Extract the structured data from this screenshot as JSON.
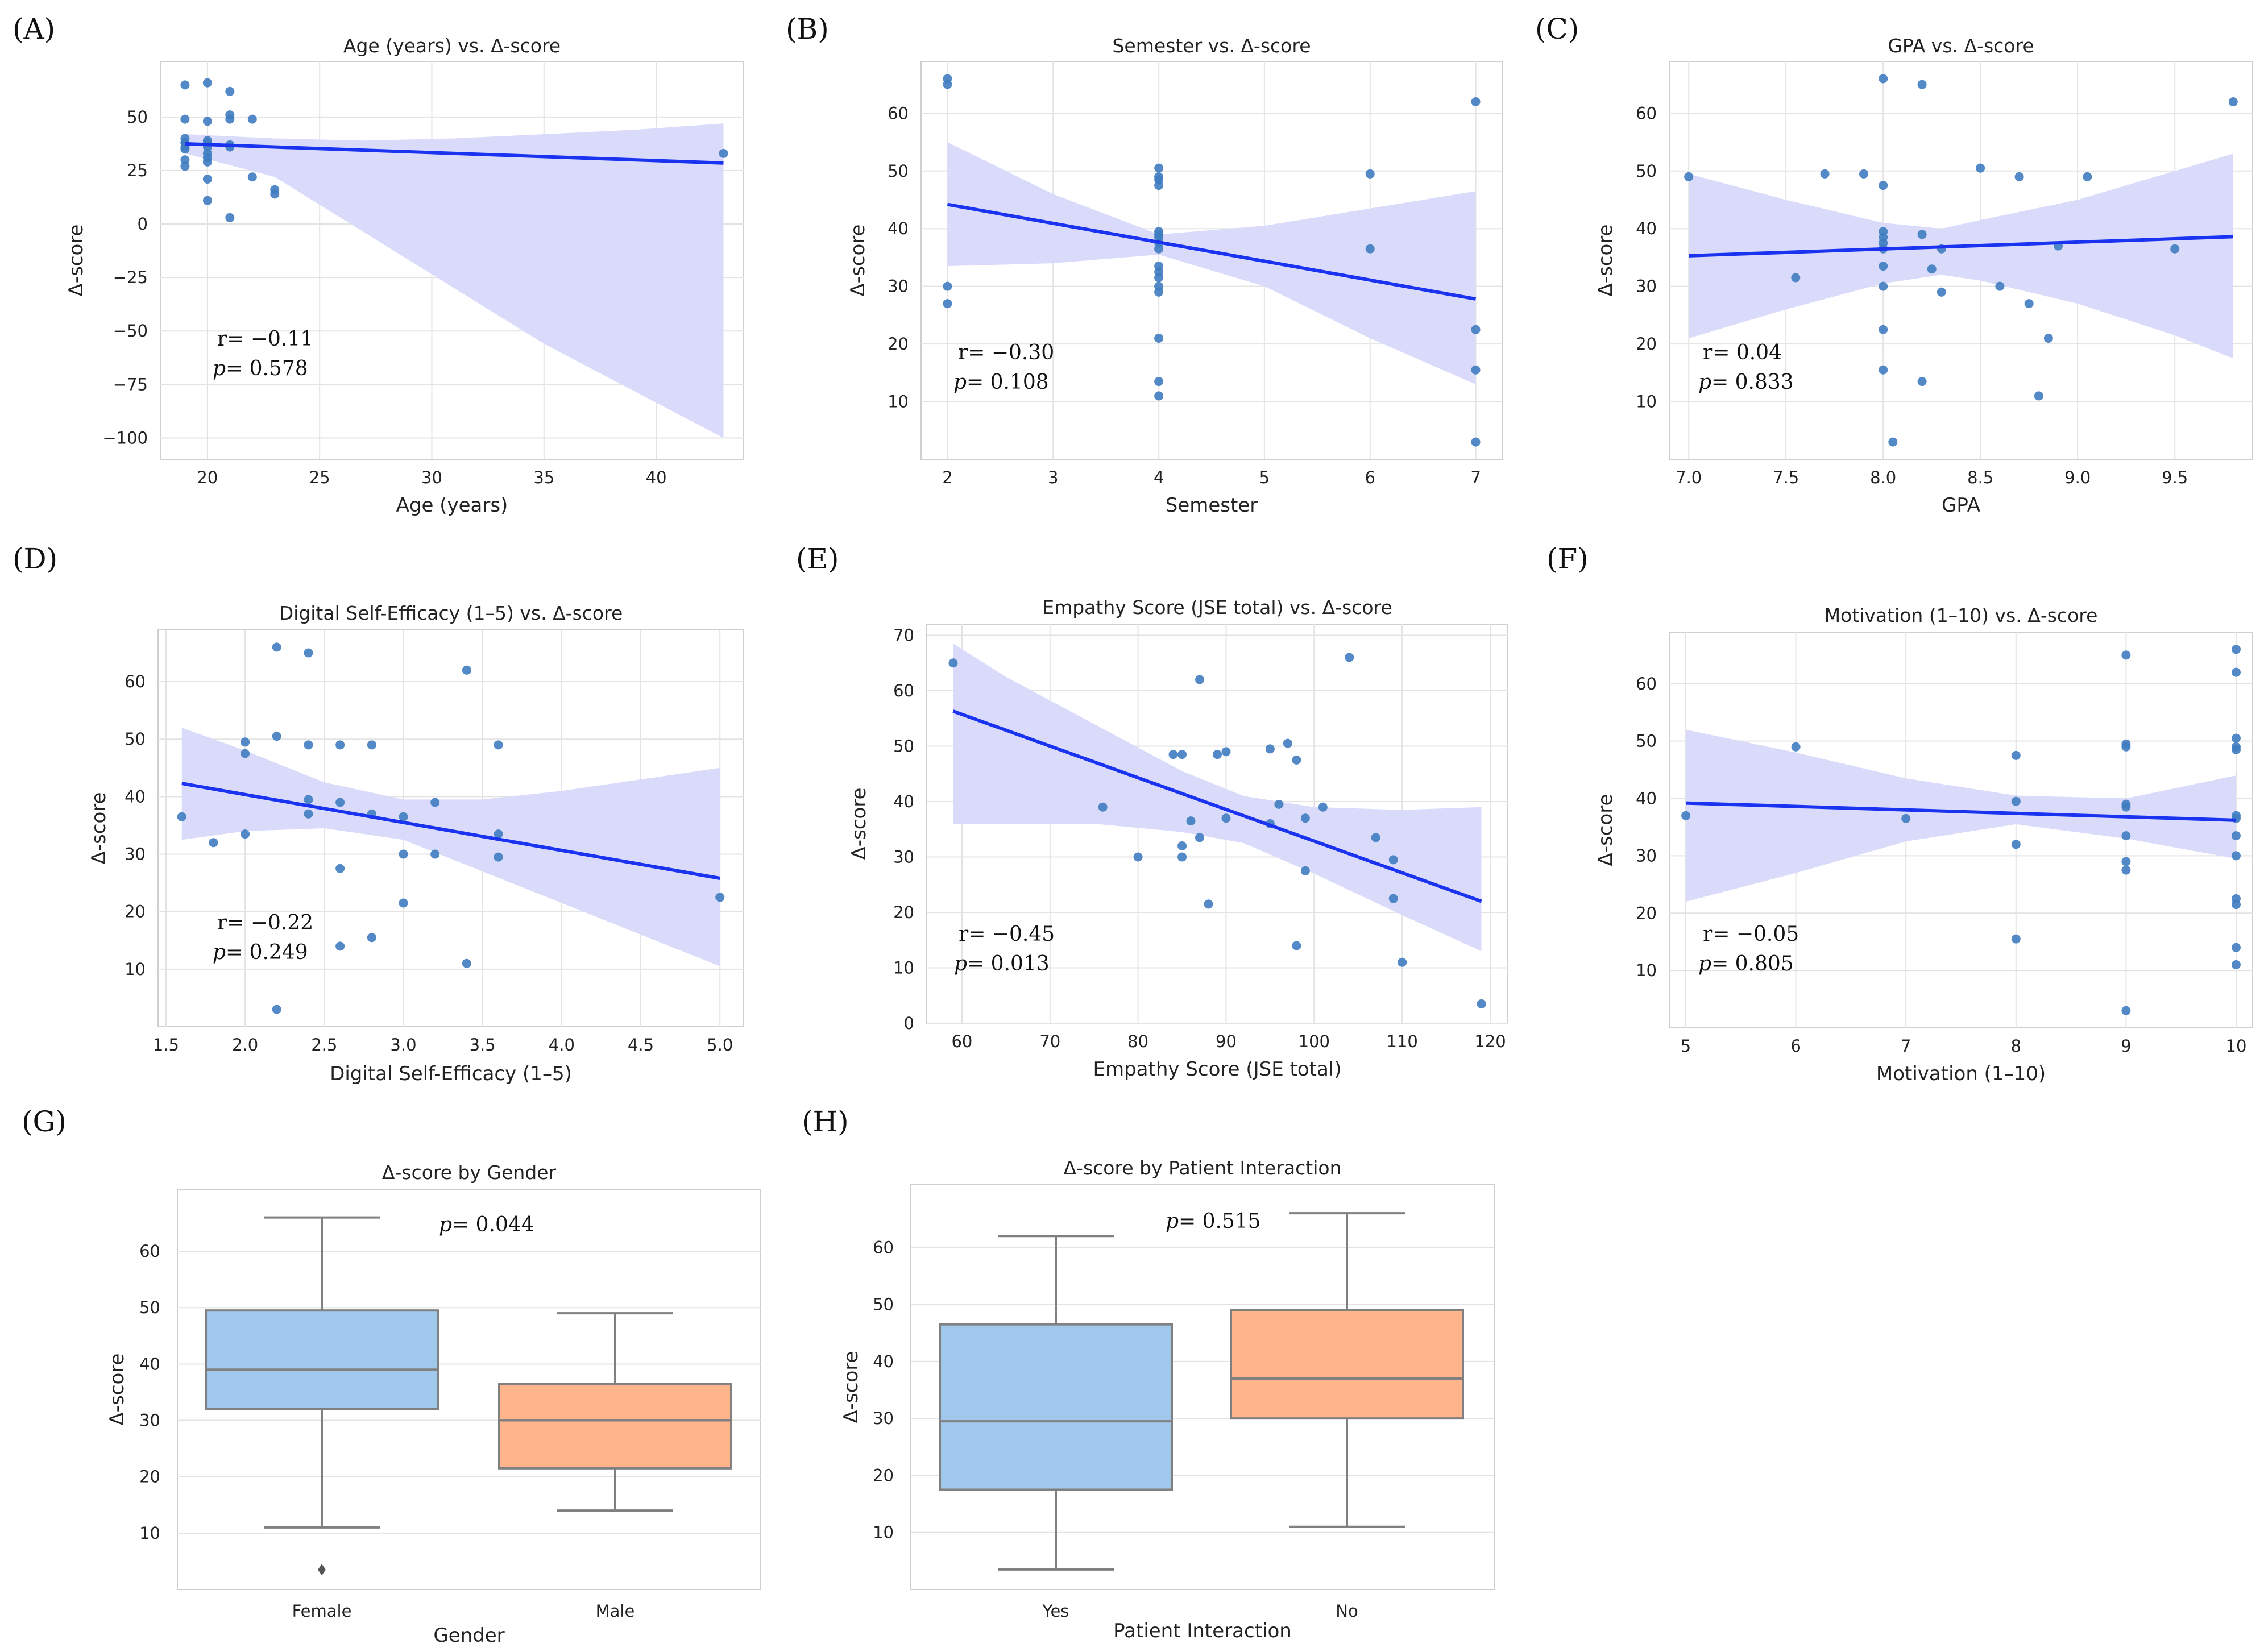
{
  "figure": {
    "panel_labels": [
      "(A)",
      "(B)",
      "(C)",
      "(D)",
      "(E)",
      "(F)",
      "(G)",
      "(H)"
    ]
  },
  "colors": {
    "points": "#3f7cc0",
    "regression_line": "#1a33f0",
    "ci_band": "#d8d9fb",
    "grid": "#e3e3e3",
    "box_female": "#a0c8ec",
    "box_male": "#ffb48c",
    "whisker": "#808080"
  },
  "chart_data": [
    {
      "id": "A",
      "type": "scatter",
      "title": "Age (years) vs. Δ-score",
      "xlabel": "Age (years)",
      "ylabel": "Δ-score",
      "xlim": [
        17.9,
        43.9
      ],
      "ylim": [
        -110,
        76
      ],
      "xticks": [
        20,
        25,
        30,
        35,
        40
      ],
      "yticks": [
        -100,
        -75,
        -50,
        -25,
        0,
        25,
        50
      ],
      "x": [
        19,
        19,
        19,
        19,
        19,
        19,
        19,
        19,
        19,
        20,
        20,
        20,
        20,
        20,
        20,
        20,
        20,
        20,
        20,
        21,
        21,
        21,
        21,
        21,
        21,
        22,
        22,
        23,
        23,
        43
      ],
      "y": [
        65,
        49,
        40,
        38,
        36,
        35,
        30,
        27,
        38,
        66,
        48,
        39,
        36,
        33,
        31,
        29,
        21,
        11,
        38,
        62,
        51,
        49,
        37,
        36,
        3,
        49,
        22,
        16,
        14,
        33
      ],
      "fit": {
        "x": [
          19,
          43
        ],
        "y": [
          37.5,
          28.5
        ]
      },
      "ci": {
        "x": [
          19,
          23,
          27,
          31,
          35,
          39,
          43
        ],
        "lower": [
          33,
          22,
          -4,
          -30,
          -56,
          -78,
          -100
        ],
        "upper": [
          42,
          40,
          39,
          40,
          42,
          44,
          47
        ]
      },
      "stats": {
        "r": "r= −0.11",
        "p_label": "p",
        "p_value": "= 0.578"
      }
    },
    {
      "id": "B",
      "type": "scatter",
      "title": "Semester vs. Δ-score",
      "xlabel": "Semester",
      "ylabel": "Δ-score",
      "xlim": [
        1.75,
        7.25
      ],
      "ylim": [
        0,
        69
      ],
      "xticks": [
        2,
        3,
        4,
        5,
        6,
        7
      ],
      "yticks": [
        10,
        20,
        30,
        40,
        50,
        60
      ],
      "x": [
        2,
        2,
        2,
        2,
        4,
        4,
        4,
        4,
        4,
        4,
        4,
        4,
        4,
        4,
        4,
        4,
        4,
        4,
        4,
        4,
        4,
        6,
        6,
        7,
        7,
        7,
        7
      ],
      "y": [
        66,
        65,
        30,
        27,
        50.5,
        49,
        48.5,
        47.5,
        39.5,
        38.5,
        37.5,
        36.5,
        33.5,
        32.5,
        31.5,
        30,
        29,
        21,
        13.5,
        11,
        39,
        49.5,
        36.5,
        62,
        22.5,
        15.5,
        3
      ],
      "fit": {
        "x": [
          2,
          7
        ],
        "y": [
          44.2,
          27.8
        ]
      },
      "ci": {
        "x": [
          2,
          3,
          4,
          5,
          6,
          7
        ],
        "lower": [
          33.5,
          34,
          35.5,
          30,
          21,
          13
        ],
        "upper": [
          55,
          46,
          39,
          40.5,
          43.5,
          46.5
        ]
      },
      "stats": {
        "r": "r= −0.30",
        "p_label": "p",
        "p_value": "= 0.108"
      }
    },
    {
      "id": "C",
      "type": "scatter",
      "title": "GPA vs. Δ-score",
      "xlabel": "GPA",
      "ylabel": "Δ-score",
      "xlim": [
        6.9,
        9.9
      ],
      "ylim": [
        0,
        69
      ],
      "xticks": [
        7.0,
        7.5,
        8.0,
        8.5,
        9.0,
        9.5
      ],
      "yticks": [
        10,
        20,
        30,
        40,
        50,
        60
      ],
      "x": [
        7.0,
        7.55,
        7.7,
        7.9,
        8.0,
        8.0,
        8.0,
        8.0,
        8.0,
        8.0,
        8.0,
        8.0,
        8.0,
        8.0,
        8.05,
        8.2,
        8.2,
        8.2,
        8.25,
        8.3,
        8.3,
        8.5,
        8.6,
        8.7,
        8.75,
        8.8,
        8.85,
        8.9,
        9.05,
        9.5,
        9.8
      ],
      "y": [
        49,
        31.5,
        49.5,
        49.5,
        66,
        47.5,
        39.5,
        38.5,
        37.5,
        36.5,
        33.5,
        30,
        22.5,
        15.5,
        3,
        65,
        39,
        13.5,
        33,
        36.5,
        29,
        50.5,
        30,
        49,
        27,
        11,
        21,
        37,
        49,
        36.5,
        62
      ],
      "fit": {
        "x": [
          7.0,
          9.8
        ],
        "y": [
          35.3,
          38.6
        ]
      },
      "ci": {
        "x": [
          7.0,
          7.5,
          8.0,
          8.3,
          8.5,
          9.0,
          9.5,
          9.8
        ],
        "lower": [
          21,
          26,
          30.5,
          32,
          31,
          27,
          21.5,
          17.5
        ],
        "upper": [
          49.5,
          45,
          41,
          40,
          41.5,
          45,
          50,
          53
        ]
      },
      "stats": {
        "r": "r= 0.04",
        "p_label": "p",
        "p_value": "= 0.833"
      }
    },
    {
      "id": "D",
      "type": "scatter",
      "title": "Digital Self-Efficacy (1–5) vs. Δ-score",
      "xlabel": "Digital Self-Efficacy (1–5)",
      "ylabel": "Δ-score",
      "xlim": [
        1.45,
        5.15
      ],
      "ylim": [
        0,
        69
      ],
      "xticks": [
        1.5,
        2.0,
        2.5,
        3.0,
        3.5,
        4.0,
        4.5,
        5.0
      ],
      "yticks": [
        10,
        20,
        30,
        40,
        50,
        60
      ],
      "x": [
        1.6,
        1.8,
        2.0,
        2.0,
        2.0,
        2.2,
        2.2,
        2.2,
        2.4,
        2.4,
        2.4,
        2.4,
        2.6,
        2.6,
        2.6,
        2.6,
        2.8,
        2.8,
        2.8,
        3.0,
        3.0,
        3.0,
        3.2,
        3.2,
        3.4,
        3.4,
        3.6,
        3.6,
        3.6,
        5.0
      ],
      "y": [
        36.5,
        32,
        49.5,
        47.5,
        33.5,
        66,
        50.5,
        3,
        65,
        49,
        39.5,
        37,
        49,
        39,
        27.5,
        14,
        49,
        37,
        15.5,
        36.5,
        30,
        21.5,
        39,
        30,
        62,
        11,
        49,
        33.5,
        29.5,
        22.5
      ],
      "fit": {
        "x": [
          1.6,
          5.0
        ],
        "y": [
          42.3,
          25.8
        ]
      },
      "ci": {
        "x": [
          1.6,
          2.0,
          2.5,
          3.0,
          3.5,
          4.0,
          4.5,
          5.0
        ],
        "lower": [
          32.5,
          34,
          34.5,
          32.5,
          27,
          21.5,
          16,
          10.5
        ],
        "upper": [
          52,
          48,
          42.5,
          39.5,
          39.5,
          41,
          43,
          45
        ]
      },
      "stats": {
        "r": "r= −0.22",
        "p_label": "p",
        "p_value": "= 0.249"
      }
    },
    {
      "id": "E",
      "type": "scatter",
      "title": "Empathy Score (JSE total) vs. Δ-score",
      "xlabel": "Empathy Score (JSE total)",
      "ylabel": "Δ-score",
      "xlim": [
        56,
        122
      ],
      "ylim": [
        0,
        72
      ],
      "xticks": [
        60,
        70,
        80,
        90,
        100,
        110,
        120
      ],
      "yticks": [
        0,
        10,
        20,
        30,
        40,
        50,
        60,
        70
      ],
      "x": [
        59,
        76,
        80,
        84,
        85,
        85,
        85,
        86,
        87,
        87,
        88,
        89,
        90,
        90,
        95,
        95,
        96,
        97,
        98,
        98,
        99,
        99,
        101,
        104,
        107,
        109,
        109,
        110,
        119
      ],
      "y": [
        65,
        39,
        30,
        48.5,
        48.5,
        32,
        30,
        36.5,
        62,
        33.5,
        21.5,
        48.5,
        49,
        37,
        49.5,
        36,
        39.5,
        50.5,
        47.5,
        14,
        37,
        27.5,
        39,
        66,
        33.5,
        29.5,
        22.5,
        11,
        3.5
      ],
      "fit": {
        "x": [
          59,
          119
        ],
        "y": [
          56.3,
          22
        ]
      },
      "ci": {
        "x": [
          59,
          65,
          75,
          85,
          92,
          100,
          110,
          119
        ],
        "lower": [
          36,
          36,
          36,
          34.5,
          32.5,
          27,
          19.5,
          13
        ],
        "upper": [
          68.5,
          62.5,
          54,
          45.5,
          41,
          39,
          38.5,
          39
        ]
      },
      "stats": {
        "r": "r= −0.45",
        "p_label": "p",
        "p_value": "= 0.013"
      }
    },
    {
      "id": "F",
      "type": "scatter",
      "title": "Motivation (1–10) vs. Δ-score",
      "xlabel": "Motivation (1–10)",
      "ylabel": "Δ-score",
      "xlim": [
        4.85,
        10.15
      ],
      "ylim": [
        0,
        69
      ],
      "xticks": [
        5,
        6,
        7,
        8,
        9,
        10
      ],
      "yticks": [
        10,
        20,
        30,
        40,
        50,
        60
      ],
      "x": [
        5,
        6,
        7,
        8,
        8,
        8,
        8,
        9,
        9,
        9,
        9,
        9,
        9,
        9,
        9,
        9,
        10,
        10,
        10,
        10,
        10,
        10,
        10,
        10,
        10,
        10,
        10,
        10,
        10
      ],
      "y": [
        37,
        49,
        36.5,
        47.5,
        39.5,
        32,
        15.5,
        65,
        49.5,
        49,
        39,
        38.5,
        33.5,
        29,
        27.5,
        3,
        66,
        62,
        50.5,
        49,
        48.5,
        37,
        36.5,
        33.5,
        30,
        22.5,
        21.5,
        14,
        11
      ],
      "fit": {
        "x": [
          5,
          10
        ],
        "y": [
          39.2,
          36.2
        ]
      },
      "ci": {
        "x": [
          5,
          6,
          7,
          8,
          9,
          10
        ],
        "lower": [
          22,
          27,
          32.5,
          35.5,
          33,
          29.5
        ],
        "upper": [
          52,
          48,
          43.5,
          40.5,
          40,
          44
        ]
      },
      "stats": {
        "r": "r= −0.05",
        "p_label": "p",
        "p_value": "= 0.805"
      }
    },
    {
      "id": "G",
      "type": "box",
      "title": "Δ-score by Gender",
      "xlabel": "Gender",
      "ylabel": "Δ-score",
      "ylim": [
        0,
        71
      ],
      "yticks": [
        10,
        20,
        30,
        40,
        50,
        60
      ],
      "categories": [
        "Female",
        "Male"
      ],
      "boxes": [
        {
          "name": "Female",
          "min": 11,
          "q1": 32,
          "median": 39,
          "q3": 49.5,
          "max": 66,
          "outliers": [
            3.5
          ]
        },
        {
          "name": "Male",
          "min": 14,
          "q1": 21.5,
          "median": 30,
          "q3": 36.5,
          "max": 49,
          "outliers": []
        }
      ],
      "stats": {
        "p_label": "p",
        "p_value": "= 0.044"
      }
    },
    {
      "id": "H",
      "type": "box",
      "title": "Δ-score by Patient Interaction",
      "xlabel": "Patient Interaction",
      "ylabel": "Δ-score",
      "ylim": [
        0,
        71
      ],
      "yticks": [
        10,
        20,
        30,
        40,
        50,
        60
      ],
      "categories": [
        "Yes",
        "No"
      ],
      "boxes": [
        {
          "name": "Yes",
          "min": 3.5,
          "q1": 17.5,
          "median": 29.5,
          "q3": 46.5,
          "max": 62,
          "outliers": []
        },
        {
          "name": "No",
          "min": 11,
          "q1": 30,
          "median": 37,
          "q3": 49,
          "max": 66,
          "outliers": []
        }
      ],
      "stats": {
        "p_label": "p",
        "p_value": "= 0.515"
      }
    }
  ]
}
